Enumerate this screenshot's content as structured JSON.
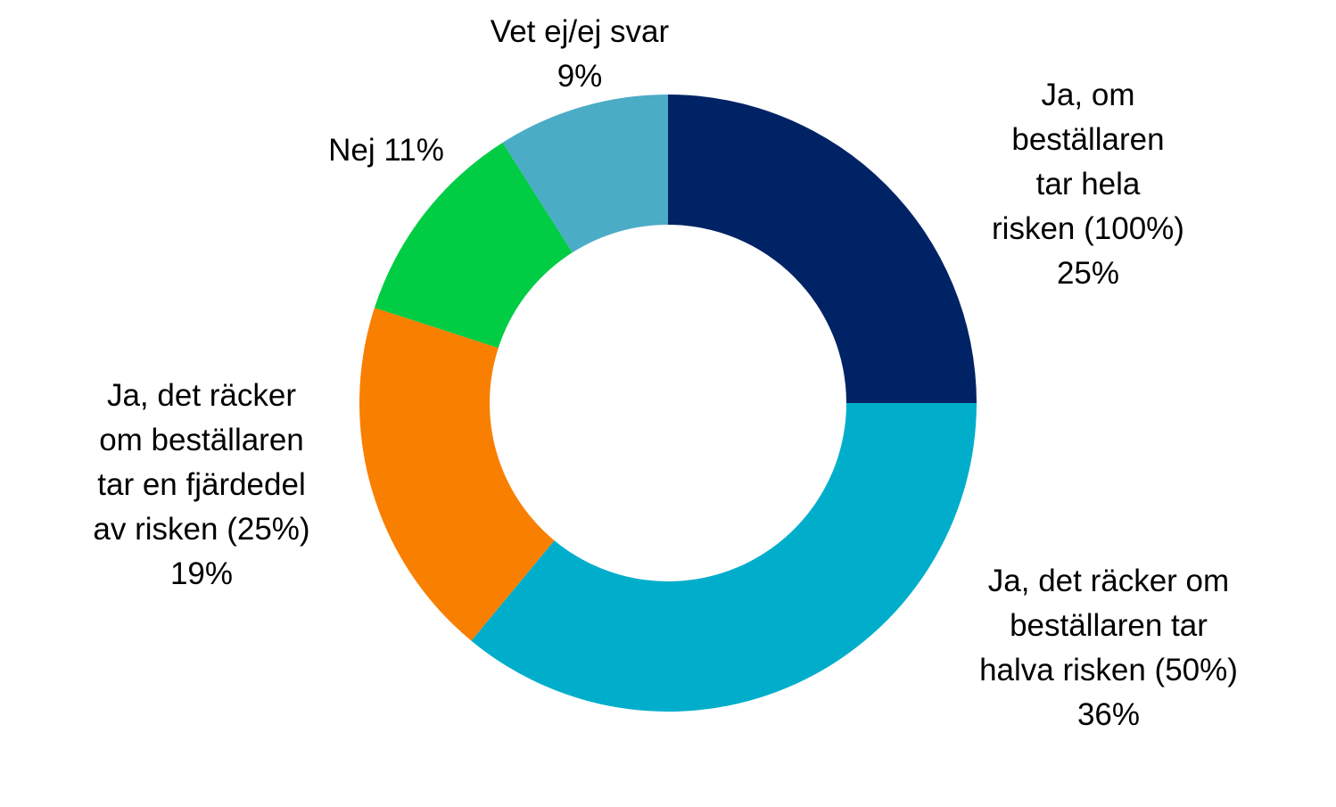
{
  "chart_data": {
    "type": "pie",
    "variant": "donut",
    "title": "",
    "legend": "none",
    "slices": [
      {
        "label_lines": [
          "Ja, om",
          "beställaren",
          "tar hela",
          "risken (100%)"
        ],
        "percent_label": "25%",
        "value": 25,
        "color": "#002366"
      },
      {
        "label_lines": [
          "Ja, det räcker om",
          "beställaren tar",
          "halva risken (50%)"
        ],
        "percent_label": "36%",
        "value": 36,
        "color": "#00AECB"
      },
      {
        "label_lines": [
          "Ja, det räcker",
          "om beställaren",
          "tar en fjärdedel",
          "av risken (25%)"
        ],
        "percent_label": "19%",
        "value": 19,
        "color": "#F97F00"
      },
      {
        "label_lines": [
          "Nej 11%"
        ],
        "percent_label": "",
        "value": 11,
        "color": "#00CC44"
      },
      {
        "label_lines": [
          "Vet ej/ej svar"
        ],
        "percent_label": "9%",
        "value": 9,
        "color": "#4BACC6"
      }
    ]
  }
}
